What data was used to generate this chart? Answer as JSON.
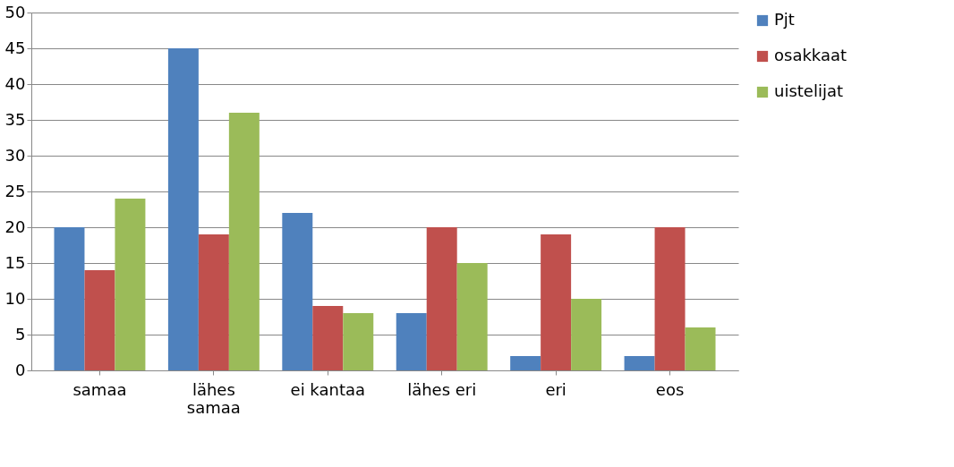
{
  "chart_data": {
    "type": "bar",
    "categories": [
      "samaa",
      "lähes samaa",
      "ei kantaa",
      "lähes eri",
      "eri",
      "eos"
    ],
    "series": [
      {
        "name": "Pjt",
        "color": "#4f81bd",
        "values": [
          20,
          45,
          22,
          8,
          2,
          2
        ]
      },
      {
        "name": "osakkaat",
        "color": "#c0504d",
        "values": [
          14,
          19,
          9,
          20,
          19,
          20
        ]
      },
      {
        "name": "uistelijat",
        "color": "#9bbb59",
        "values": [
          24,
          36,
          8,
          15,
          10,
          6
        ]
      }
    ],
    "ylim": [
      0,
      50
    ],
    "yticks": [
      0,
      5,
      10,
      15,
      20,
      25,
      30,
      35,
      40,
      45,
      50
    ],
    "grid": "y",
    "legend": "right"
  }
}
